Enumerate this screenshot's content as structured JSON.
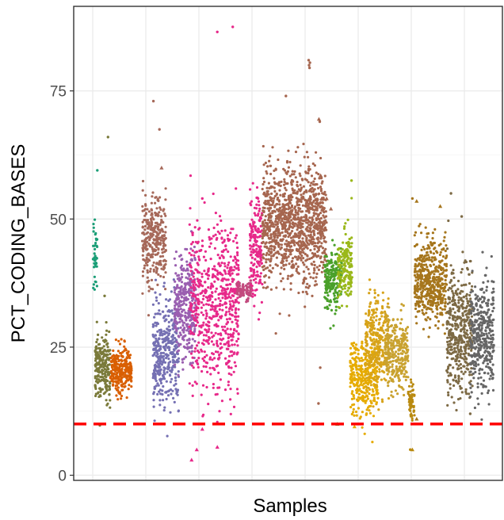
{
  "chart_data": {
    "type": "scatter",
    "title": "",
    "xlabel": "Samples",
    "ylabel": "PCT_CODING_BASES",
    "ylim": [
      -1,
      91.5
    ],
    "yticks": [
      0,
      25,
      50,
      75
    ],
    "ytick_labels": [
      "0",
      "25",
      "50",
      "75"
    ],
    "grid": true,
    "legend": "none",
    "x_range": [
      0,
      1
    ],
    "threshold": {
      "value": 10,
      "color": "#ff0000",
      "style": "dashed"
    },
    "groups": [
      {
        "x_start": 0.045,
        "x_end": 0.055,
        "mean": 44,
        "sd": 3.5,
        "n": 40,
        "color": "#1b9e77"
      },
      {
        "x_start": 0.05,
        "x_end": 0.085,
        "mean": 21,
        "sd": 3.5,
        "n": 220,
        "color": "#7a7a3a"
      },
      {
        "x_start": 0.085,
        "x_end": 0.135,
        "mean": 20.5,
        "sd": 2.2,
        "n": 260,
        "color": "#d95f02"
      },
      {
        "x_start": 0.16,
        "x_end": 0.215,
        "mean": 46,
        "sd": 4.5,
        "n": 300,
        "color": "#a6695a"
      },
      {
        "x_start": 0.185,
        "x_end": 0.245,
        "mean": 24,
        "sd": 5,
        "n": 380,
        "color": "#7570b3"
      },
      {
        "x_start": 0.235,
        "x_end": 0.285,
        "mean": 33,
        "sd": 5,
        "n": 330,
        "color": "#9a5fb0"
      },
      {
        "x_start": 0.27,
        "x_end": 0.385,
        "mean": 34,
        "sd": 8,
        "n": 650,
        "color": "#e7298a"
      },
      {
        "x_start": 0.38,
        "x_end": 0.415,
        "mean": 36,
        "sd": 0.8,
        "n": 80,
        "color": "#c24a7e"
      },
      {
        "x_start": 0.41,
        "x_end": 0.44,
        "mean": 44,
        "sd": 5,
        "n": 180,
        "color": "#e7298a"
      },
      {
        "x_start": 0.44,
        "x_end": 0.59,
        "mean": 49,
        "sd": 5.5,
        "n": 1100,
        "color": "#a6664f"
      },
      {
        "x_start": 0.585,
        "x_end": 0.625,
        "mean": 38,
        "sd": 3,
        "n": 200,
        "color": "#4aa02a"
      },
      {
        "x_start": 0.615,
        "x_end": 0.65,
        "mean": 41,
        "sd": 3.5,
        "n": 170,
        "color": "#9ab81a"
      },
      {
        "x_start": 0.645,
        "x_end": 0.71,
        "mean": 19,
        "sd": 3.5,
        "n": 330,
        "color": "#e6ab02"
      },
      {
        "x_start": 0.68,
        "x_end": 0.735,
        "mean": 26,
        "sd": 4.5,
        "n": 300,
        "color": "#d7a31a"
      },
      {
        "x_start": 0.725,
        "x_end": 0.78,
        "mean": 24,
        "sd": 3.5,
        "n": 300,
        "color": "#c9a230"
      },
      {
        "x_start": 0.78,
        "x_end": 0.795,
        "mean": 14.5,
        "sd": 1.5,
        "n": 60,
        "color": "#b98a10"
      },
      {
        "x_start": 0.795,
        "x_end": 0.87,
        "mean": 38,
        "sd": 4,
        "n": 480,
        "color": "#a6761d"
      },
      {
        "x_start": 0.87,
        "x_end": 0.93,
        "mean": 28,
        "sd": 6,
        "n": 420,
        "color": "#7d6a45"
      },
      {
        "x_start": 0.925,
        "x_end": 0.98,
        "mean": 27,
        "sd": 5.5,
        "n": 380,
        "color": "#666666"
      }
    ],
    "outliers": [
      {
        "x": 0.08,
        "y": 66,
        "color": "#7a7a3a"
      },
      {
        "x": 0.072,
        "y": 35,
        "color": "#7a7a3a"
      },
      {
        "x": 0.055,
        "y": 59.5,
        "color": "#1b9e77"
      },
      {
        "x": 0.186,
        "y": 73,
        "color": "#a6695a"
      },
      {
        "x": 0.2,
        "y": 67.5,
        "color": "#a6695a"
      },
      {
        "x": 0.3,
        "y": 54,
        "color": "#e7298a"
      },
      {
        "x": 0.335,
        "y": 86.5,
        "color": "#e7298a"
      },
      {
        "x": 0.371,
        "y": 87.5,
        "color": "#e7298a"
      },
      {
        "x": 0.43,
        "y": 54,
        "color": "#e7298a"
      },
      {
        "x": 0.495,
        "y": 74,
        "color": "#a6664f"
      },
      {
        "x": 0.548,
        "y": 81,
        "color": "#a6664f"
      },
      {
        "x": 0.549,
        "y": 80,
        "color": "#a6664f"
      },
      {
        "x": 0.55,
        "y": 79.5,
        "color": "#a6664f"
      },
      {
        "x": 0.551,
        "y": 80.5,
        "color": "#a6664f"
      },
      {
        "x": 0.574,
        "y": 69,
        "color": "#a6664f"
      },
      {
        "x": 0.571,
        "y": 14,
        "color": "#a6664f"
      },
      {
        "x": 0.575,
        "y": 21,
        "color": "#a6664f"
      },
      {
        "x": 0.648,
        "y": 57.5,
        "color": "#9ab81a"
      },
      {
        "x": 0.785,
        "y": 5,
        "color": "#b98a10"
      },
      {
        "x": 0.79,
        "y": 54,
        "color": "#a6761d"
      },
      {
        "x": 0.88,
        "y": 55,
        "color": "#7d6a45"
      },
      {
        "x": 0.905,
        "y": 50.5,
        "color": "#7d6a45"
      },
      {
        "x": 0.925,
        "y": 12,
        "color": "#7d6a45"
      },
      {
        "x": 0.96,
        "y": 39,
        "color": "#666666"
      }
    ],
    "triangles": [
      {
        "x": 0.205,
        "y": 60,
        "color": "#a6695a"
      },
      {
        "x": 0.3,
        "y": 9,
        "color": "#e7298a"
      },
      {
        "x": 0.275,
        "y": 3,
        "color": "#e7298a"
      },
      {
        "x": 0.287,
        "y": 5,
        "color": "#e7298a"
      },
      {
        "x": 0.335,
        "y": 5.5,
        "color": "#e7298a"
      },
      {
        "x": 0.572,
        "y": 69.5,
        "color": "#a6664f"
      },
      {
        "x": 0.576,
        "y": 58.5,
        "color": "#a6664f"
      },
      {
        "x": 0.59,
        "y": 54,
        "color": "#a6664f"
      },
      {
        "x": 0.6,
        "y": 52,
        "color": "#a6664f"
      },
      {
        "x": 0.615,
        "y": 10,
        "color": "#4aa02a"
      },
      {
        "x": 0.655,
        "y": 9.5,
        "color": "#e6ab02"
      },
      {
        "x": 0.79,
        "y": 5,
        "color": "#b98a10"
      },
      {
        "x": 0.8,
        "y": 53.5,
        "color": "#a6761d"
      },
      {
        "x": 0.855,
        "y": 52.5,
        "color": "#a6761d"
      },
      {
        "x": 0.787,
        "y": 12,
        "color": "#b98a10"
      },
      {
        "x": 0.8,
        "y": 11,
        "color": "#a6761d"
      }
    ]
  }
}
